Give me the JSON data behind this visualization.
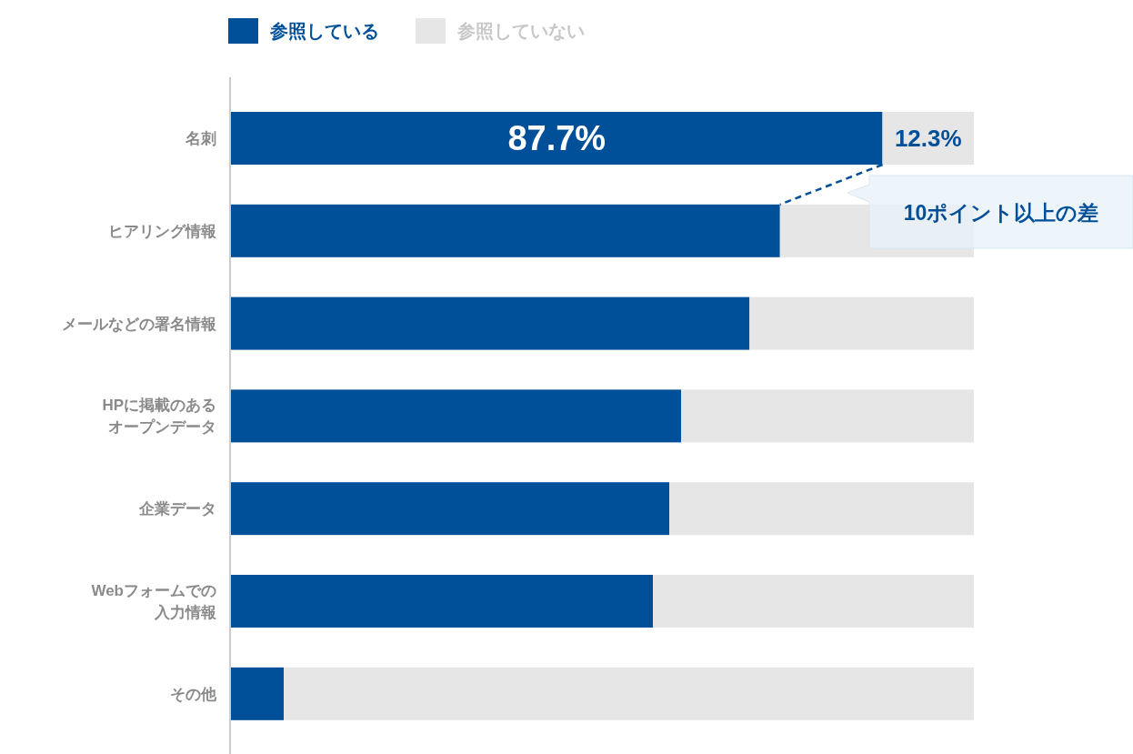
{
  "chart_data": {
    "type": "bar",
    "orientation": "horizontal",
    "stacked": true,
    "legend": "top left",
    "xlim": [
      0,
      100
    ],
    "tick_labels": "y",
    "categories": [
      "名刺",
      "ヒアリング情報",
      "メールなどの署名情報",
      "HPに掲載のあるオープンデータ",
      "企業データ",
      "Webフォームでの入力情報",
      "その他"
    ],
    "series": [
      {
        "name": "参照している",
        "color": "#004f99",
        "values": [
          87.7,
          73.9,
          69.8,
          60.6,
          59.0,
          56.8,
          7.1
        ],
        "value_labels": [
          "87.7%",
          null,
          null,
          null,
          null,
          null,
          null
        ]
      },
      {
        "name": "参照していない",
        "color": "#e6e6e6",
        "values": [
          12.3,
          26.1,
          30.2,
          39.4,
          41.0,
          43.2,
          92.9
        ],
        "value_labels": [
          "12.3%",
          null,
          null,
          null,
          null,
          null,
          null
        ]
      }
    ],
    "annotations": [
      "10ポイント以上の差"
    ]
  }
}
